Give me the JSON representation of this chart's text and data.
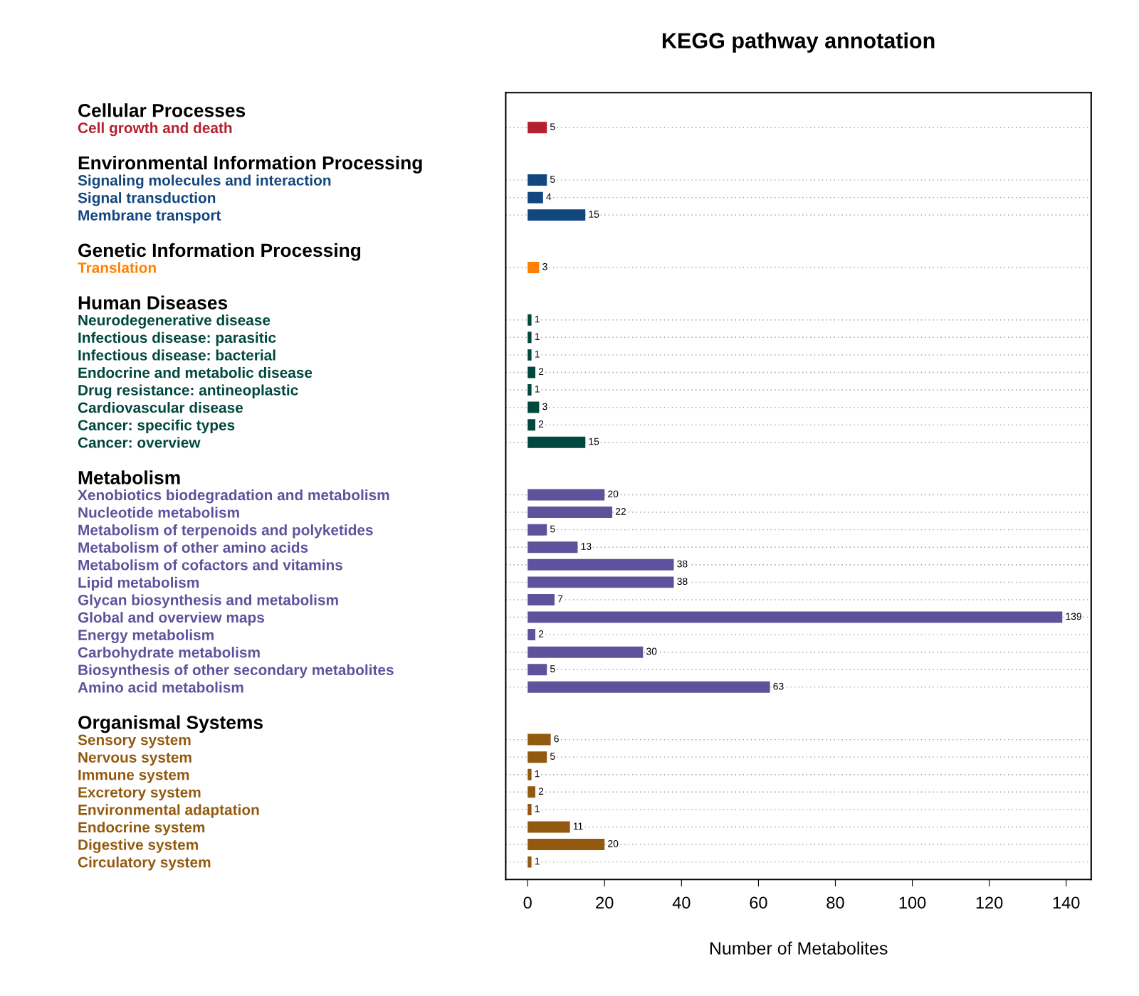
{
  "chart_data": {
    "type": "bar",
    "orientation": "horizontal",
    "title": "KEGG pathway annotation",
    "xlabel": "Number of Metabolites",
    "categories": [
      "Cellular Processes",
      "Cell growth and death",
      null,
      "Environmental Information Processing",
      "Signaling molecules and interaction",
      "Signal transduction",
      "Membrane transport",
      null,
      "Genetic Information Processing",
      "Translation",
      null,
      "Human Diseases",
      "Neurodegenerative disease",
      "Infectious disease: parasitic",
      "Infectious disease: bacterial",
      "Endocrine and metabolic disease",
      "Drug resistance: antineoplastic",
      "Cardiovascular disease",
      "Cancer: specific types",
      "Cancer: overview",
      null,
      "Metabolism",
      "Xenobiotics biodegradation and metabolism",
      "Nucleotide metabolism",
      "Metabolism of terpenoids and polyketides",
      "Metabolism of other amino acids",
      "Metabolism of cofactors and vitamins",
      "Lipid metabolism",
      "Glycan biosynthesis and metabolism",
      "Global and overview maps",
      "Energy metabolism",
      "Carbohydrate metabolism",
      "Biosynthesis of other secondary metabolites",
      "Amino acid metabolism",
      null,
      "Organismal Systems",
      "Sensory system",
      "Nervous system",
      "Immune system",
      "Excretory system",
      "Environmental adaptation",
      "Endocrine system",
      "Digestive system",
      "Circulatory system"
    ],
    "values": [
      null,
      5,
      null,
      null,
      5,
      4,
      15,
      null,
      null,
      3,
      null,
      null,
      1,
      1,
      1,
      2,
      1,
      3,
      2,
      15,
      null,
      null,
      20,
      22,
      5,
      13,
      38,
      38,
      7,
      139,
      2,
      30,
      5,
      63,
      null,
      null,
      6,
      5,
      1,
      2,
      1,
      11,
      20,
      1
    ],
    "colors": [
      "#000000",
      "#b5202e",
      "#000000",
      "#000000",
      "#12467f",
      "#12467f",
      "#12467f",
      "#000000",
      "#000000",
      "#ff8000",
      "#000000",
      "#000000",
      "#00473e",
      "#00473e",
      "#00473e",
      "#00473e",
      "#00473e",
      "#00473e",
      "#00473e",
      "#00473e",
      "#000000",
      "#000000",
      "#5d539c",
      "#5d539c",
      "#5d539c",
      "#5d539c",
      "#5d539c",
      "#5d539c",
      "#5d539c",
      "#5d539c",
      "#5d539c",
      "#5d539c",
      "#5d539c",
      "#5d539c",
      "#000000",
      "#000000",
      "#935a0f",
      "#935a0f",
      "#935a0f",
      "#935a0f",
      "#935a0f",
      "#935a0f",
      "#935a0f",
      "#935a0f"
    ],
    "xlim": [
      -5.7,
      146.5
    ],
    "xticks": [
      0,
      20,
      40,
      60,
      80,
      100,
      120,
      140
    ],
    "grid": "y",
    "data_labels": true,
    "legend": false
  }
}
